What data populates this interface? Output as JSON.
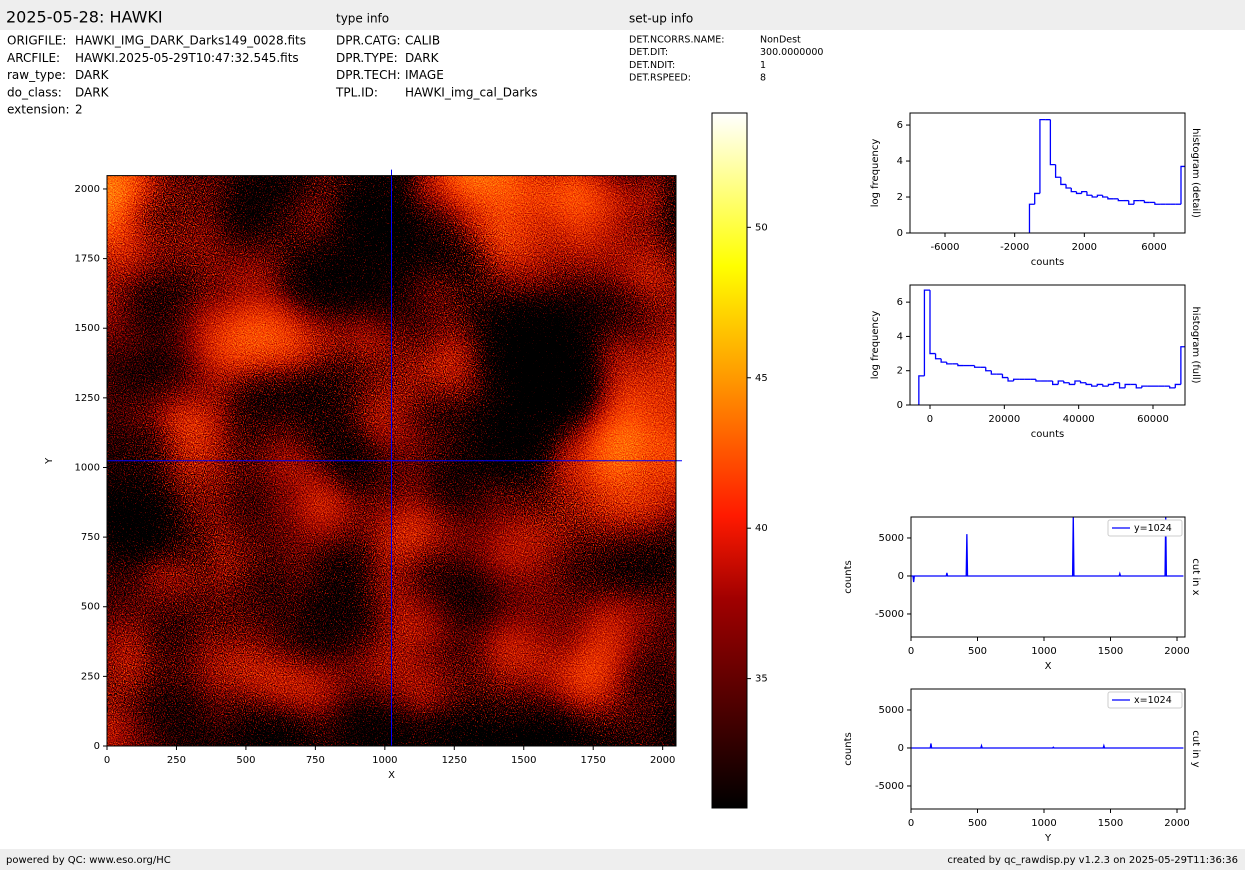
{
  "header": {
    "title": "2025-05-28: HAWKI",
    "type_info_heading": "type info",
    "setup_heading": "set-up info"
  },
  "file_info": [
    {
      "label": "ORIGFILE:",
      "value": "HAWKI_IMG_DARK_Darks149_0028.fits"
    },
    {
      "label": "ARCFILE:",
      "value": "HAWKI.2025-05-29T10:47:32.545.fits"
    },
    {
      "label": "raw_type:",
      "value": "DARK"
    },
    {
      "label": "do_class:",
      "value": "DARK"
    },
    {
      "label": "extension:",
      "value": "2"
    }
  ],
  "type_info": [
    {
      "label": "DPR.CATG:",
      "value": "CALIB"
    },
    {
      "label": "DPR.TYPE:",
      "value": "DARK"
    },
    {
      "label": "DPR.TECH:",
      "value": "IMAGE"
    },
    {
      "label": "TPL.ID:",
      "value": "HAWKI_img_cal_Darks"
    }
  ],
  "setup_info": [
    {
      "label": "DET.NCORRS.NAME:",
      "value": "NonDest"
    },
    {
      "label": "DET.DIT:",
      "value": "300.0000000"
    },
    {
      "label": "DET.NDIT:",
      "value": "1"
    },
    {
      "label": "DET.RSPEED:",
      "value": "8"
    }
  ],
  "footer": {
    "left": "powered by QC: www.eso.org/HC",
    "right": "created by qc_rawdisp.py v1.2.3 on 2025-05-29T11:36:36"
  },
  "chart_data": [
    {
      "type": "image",
      "xlabel": "X",
      "ylabel": "Y",
      "xlim": [
        0,
        2048
      ],
      "ylim": [
        0,
        2048
      ],
      "xticks": [
        0,
        250,
        500,
        750,
        1000,
        1250,
        1500,
        1750,
        2000
      ],
      "yticks": [
        0,
        250,
        500,
        750,
        1000,
        1250,
        1500,
        1750,
        2000
      ],
      "crosshair_x": 1024,
      "crosshair_y": 1024,
      "crosshair_color": "#0000ff"
    },
    {
      "type": "colorbar",
      "ylim": [
        30.7,
        53.8
      ],
      "yticks": [
        35,
        40,
        45,
        50
      ]
    },
    {
      "type": "histogram",
      "title": "histogram (detail)",
      "xlabel": "counts",
      "ylabel": "log frequency",
      "color": "#0000ff",
      "xlim": [
        -8010,
        7780
      ],
      "ylim": [
        0,
        6.67
      ],
      "xticks": [
        -6000,
        -2000,
        2000,
        6000
      ],
      "yticks": [
        0,
        2,
        4,
        6
      ],
      "bins": [
        -1150,
        -850,
        -550,
        -250,
        50,
        350,
        650,
        950,
        1250,
        1550,
        1850,
        2150,
        2450,
        2750,
        3050,
        3350,
        3650,
        3950,
        4250,
        4550,
        4850,
        5150,
        5450,
        5750,
        6050,
        6350,
        6650,
        6950,
        7250,
        7550,
        7850
      ],
      "counts": [
        1.6,
        2.2,
        6.3,
        6.3,
        3.8,
        3.1,
        2.7,
        2.5,
        2.3,
        2.2,
        2.3,
        2.1,
        2.0,
        2.1,
        2.0,
        1.9,
        1.9,
        1.8,
        1.8,
        1.6,
        1.8,
        1.8,
        1.7,
        1.7,
        1.6,
        1.6,
        1.6,
        1.6,
        1.6,
        3.7
      ]
    },
    {
      "type": "histogram",
      "title": "histogram (full)",
      "xlabel": "counts",
      "ylabel": "log frequency",
      "color": "#0000ff",
      "xlim": [
        -5380,
        68610
      ],
      "ylim": [
        0,
        7
      ],
      "xticks": [
        0,
        20000,
        40000,
        60000
      ],
      "yticks": [
        0,
        2,
        4,
        6
      ],
      "bins": [
        -3000,
        -1500,
        0,
        1500,
        3000,
        4500,
        6000,
        7500,
        9000,
        10500,
        12000,
        13500,
        15000,
        16500,
        18000,
        19500,
        21000,
        22500,
        24000,
        25500,
        27000,
        28500,
        30000,
        31500,
        33000,
        34500,
        36000,
        37500,
        39000,
        40500,
        42000,
        43500,
        45000,
        46500,
        48000,
        49500,
        51000,
        52500,
        54000,
        55500,
        57000,
        58500,
        60000,
        61500,
        63000,
        64500,
        66000,
        67500,
        69000
      ],
      "counts": [
        1.7,
        6.7,
        3.0,
        2.7,
        2.5,
        2.4,
        2.4,
        2.3,
        2.3,
        2.3,
        2.2,
        2.2,
        2.0,
        1.8,
        1.8,
        1.6,
        1.4,
        1.5,
        1.5,
        1.5,
        1.5,
        1.4,
        1.4,
        1.4,
        1.2,
        1.4,
        1.3,
        1.2,
        1.4,
        1.3,
        1.2,
        1.1,
        1.2,
        1.1,
        1.2,
        1.3,
        1.0,
        1.2,
        1.2,
        1.0,
        1.1,
        1.1,
        1.1,
        1.1,
        1.1,
        1.0,
        1.2,
        3.4
      ]
    },
    {
      "type": "line",
      "title": "cut in x",
      "xlabel": "X",
      "ylabel": "counts",
      "legend": "upper right",
      "xlim": [
        0,
        2060
      ],
      "ylim": [
        -8030,
        7760
      ],
      "xticks": [
        0,
        500,
        1000,
        1500,
        2000
      ],
      "yticks": [
        -5000,
        0,
        5000
      ],
      "x": [
        0,
        15,
        20,
        25,
        265,
        270,
        275,
        415,
        420,
        425,
        1215,
        1220,
        1225,
        1565,
        1570,
        1575,
        1910,
        1915,
        1920,
        2048
      ],
      "series": [
        {
          "name": "y=1024",
          "color": "#0000ff",
          "values": [
            0,
            0,
            -800,
            0,
            0,
            400,
            0,
            0,
            5500,
            0,
            0,
            8000,
            0,
            0,
            300,
            0,
            0,
            8000,
            0,
            0
          ]
        }
      ]
    },
    {
      "type": "line",
      "title": "cut in y",
      "xlabel": "Y",
      "ylabel": "counts",
      "legend": "upper right",
      "xlim": [
        0,
        2060
      ],
      "ylim": [
        -8030,
        7760
      ],
      "xticks": [
        0,
        500,
        1000,
        1500,
        2000
      ],
      "yticks": [
        -5000,
        0,
        5000
      ],
      "x": [
        0,
        145,
        150,
        155,
        525,
        530,
        535,
        1065,
        1070,
        1075,
        1445,
        1450,
        1455,
        2048
      ],
      "series": [
        {
          "name": "x=1024",
          "color": "#0000ff",
          "values": [
            0,
            0,
            600,
            0,
            0,
            300,
            0,
            0,
            100,
            0,
            0,
            300,
            0,
            0
          ]
        }
      ]
    }
  ]
}
